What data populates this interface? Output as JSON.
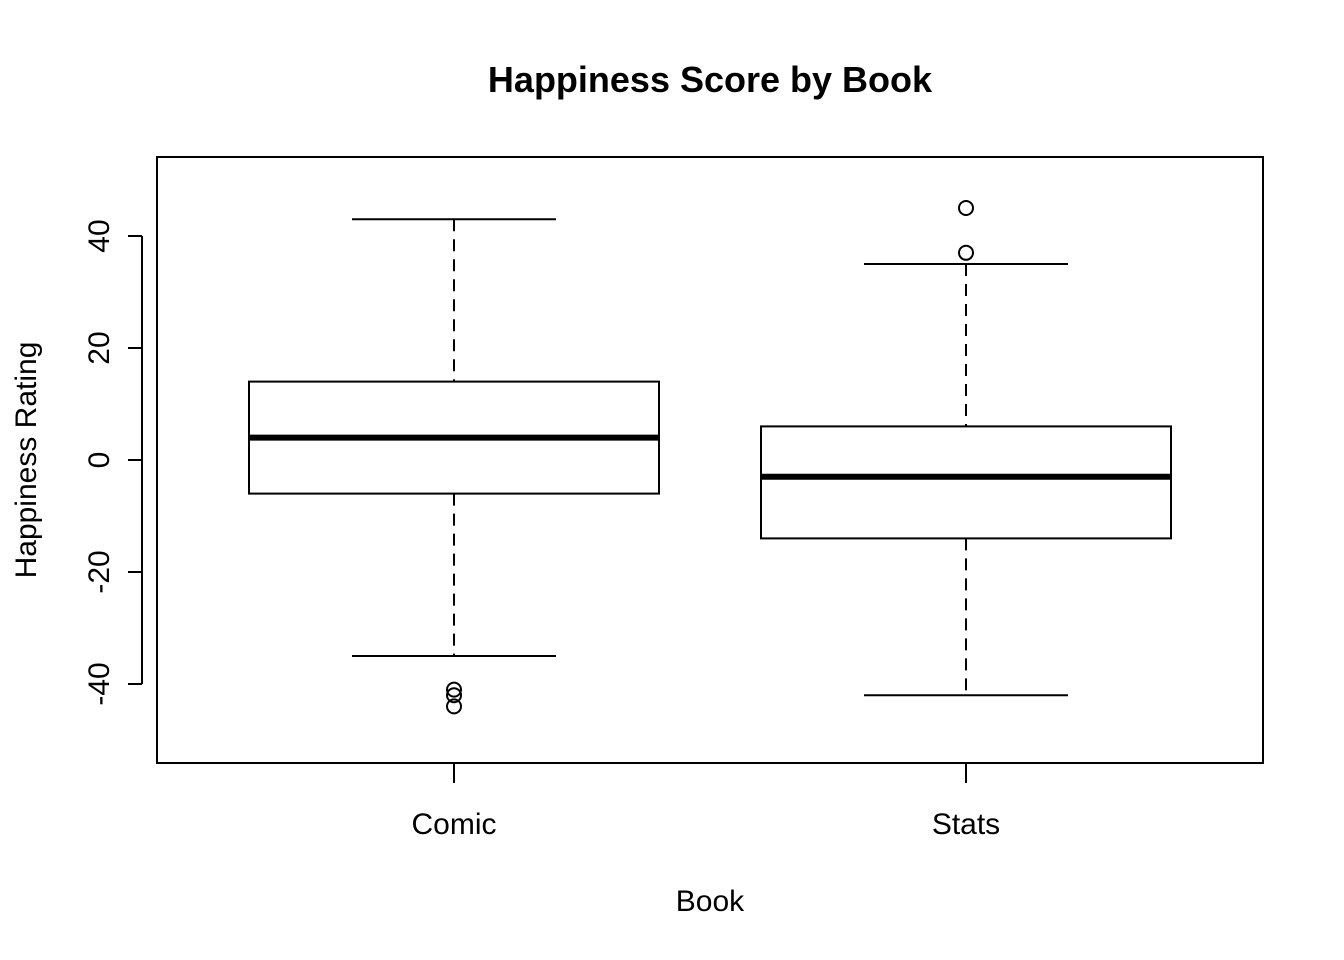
{
  "chart_data": {
    "type": "boxplot",
    "title": "Happiness Score by Book",
    "xlabel": "Book",
    "ylabel": "Happiness Rating",
    "categories": [
      "Comic",
      "Stats"
    ],
    "y_ticks": [
      "-40",
      "-20",
      "0",
      "20",
      "40"
    ],
    "y_tick_values": [
      -40,
      -20,
      0,
      20,
      40
    ],
    "ylim": [
      -54,
      54
    ],
    "grid": false,
    "boxes": [
      {
        "category": "Comic",
        "whisker_low": -35,
        "q1": -6,
        "median": 4,
        "q3": 14,
        "whisker_high": 43,
        "outliers": [
          -41,
          -42,
          -44
        ]
      },
      {
        "category": "Stats",
        "whisker_low": -42,
        "q1": -14,
        "median": -3,
        "q3": 6,
        "whisker_high": 35,
        "outliers": [
          37,
          45
        ]
      }
    ],
    "colors": {
      "stroke": "#000000",
      "background": "#ffffff"
    }
  }
}
